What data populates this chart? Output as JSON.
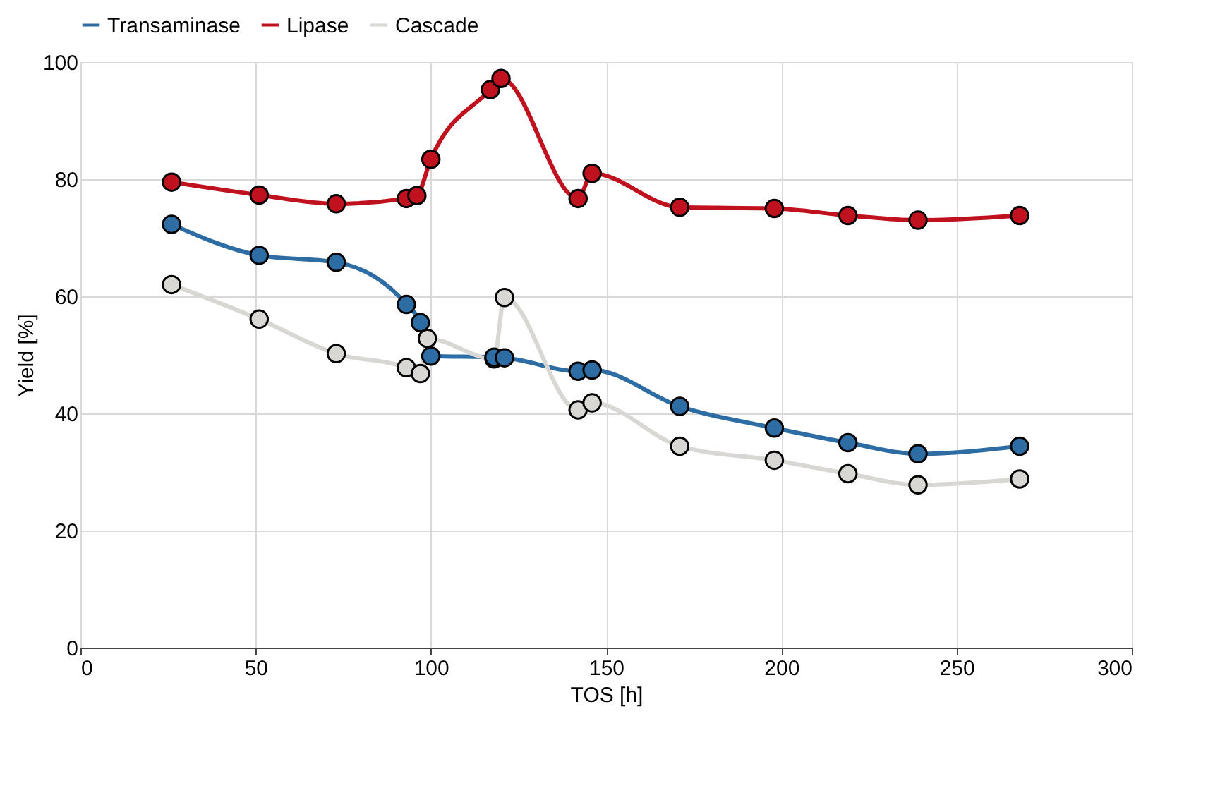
{
  "chart_data": {
    "type": "line",
    "xlabel": "TOS [h]",
    "ylabel": "Yield [%]",
    "xlim": [
      0,
      300
    ],
    "xticks": [
      0,
      50,
      100,
      150,
      200,
      250,
      300
    ],
    "ylim": [
      0,
      100
    ],
    "yticks": [
      0,
      20,
      40,
      60,
      80,
      100
    ],
    "grid": true,
    "legend": "top",
    "marker": "circle",
    "line_style": "solid",
    "series": [
      {
        "name": "Transaminase",
        "color": "#2e6da4",
        "x": [
          26,
          51,
          73,
          93,
          97,
          100,
          118,
          121,
          142,
          146,
          171,
          198,
          219,
          239,
          268
        ],
        "values": [
          72.3,
          67,
          65.8,
          58.6,
          55.5,
          49.8,
          49.6,
          49.5,
          47.2,
          47.4,
          41.2,
          37.5,
          35,
          33.1,
          34.4
        ]
      },
      {
        "name": "Lipase",
        "color": "#c0111f",
        "x": [
          26,
          51,
          73,
          93,
          96,
          100,
          117,
          120,
          142,
          146,
          171,
          198,
          219,
          239,
          268
        ],
        "values": [
          79.5,
          77.3,
          75.8,
          76.7,
          77.2,
          83.4,
          95.3,
          97.2,
          76.7,
          81,
          75.2,
          75,
          73.8,
          73,
          73.8
        ]
      },
      {
        "name": "Cascade",
        "color": "#d9d7d3",
        "x": [
          26,
          51,
          73,
          93,
          97,
          99,
          118,
          121,
          142,
          146,
          171,
          198,
          219,
          239,
          268
        ],
        "values": [
          62,
          56.1,
          50.2,
          47.8,
          46.8,
          52.8,
          49.3,
          59.8,
          40.6,
          41.8,
          34.4,
          32,
          29.7,
          27.8,
          28.8
        ]
      }
    ]
  }
}
